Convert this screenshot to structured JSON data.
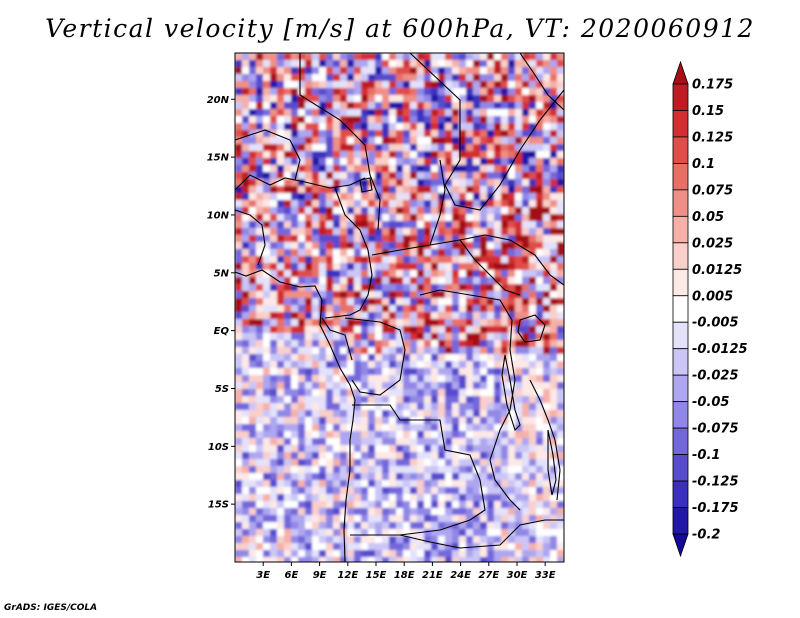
{
  "title": "Vertical velocity [m/s] at 600hPa, VT: 2020060912",
  "credit": "GrADS: IGES/COLA",
  "lat_ticks": [
    "20N",
    "15N",
    "10N",
    "5N",
    "EQ",
    "5S",
    "10S",
    "15S"
  ],
  "lon_ticks": [
    "3E",
    "6E",
    "9E",
    "12E",
    "15E",
    "18E",
    "21E",
    "24E",
    "27E",
    "30E",
    "33E"
  ],
  "colorbar": {
    "labels": [
      "0.175",
      "0.15",
      "0.125",
      "0.1",
      "0.075",
      "0.05",
      "0.025",
      "0.0125",
      "0.005",
      "-0.005",
      "-0.0125",
      "-0.025",
      "-0.05",
      "-0.075",
      "-0.1",
      "-0.125",
      "-0.175",
      "-0.2"
    ],
    "colors": [
      "#a50f15",
      "#c01b24",
      "#d32f31",
      "#e04e4a",
      "#e86f66",
      "#ef8f86",
      "#f5b0a8",
      "#f9cfca",
      "#fde9e6",
      "#ffffff",
      "#e4e2fb",
      "#cbc6f6",
      "#aea6ef",
      "#9087e6",
      "#7368db",
      "#564ccd",
      "#3a30bd",
      "#2317a8",
      "#15099a"
    ]
  },
  "chart_data": {
    "type": "heatmap",
    "variable": "Vertical velocity",
    "units": "m/s",
    "level": "600hPa",
    "valid_time": "2020060912",
    "lon_range": [
      0,
      35
    ],
    "lat_range": [
      -20,
      24
    ],
    "lon_ticks": [
      3,
      6,
      9,
      12,
      15,
      18,
      21,
      24,
      27,
      30,
      33
    ],
    "lat_ticks": [
      20,
      15,
      10,
      5,
      0,
      -5,
      -10,
      -15
    ],
    "levels": [
      -0.2,
      -0.175,
      -0.125,
      -0.1,
      -0.075,
      -0.05,
      -0.025,
      -0.0125,
      -0.005,
      0.005,
      0.0125,
      0.025,
      0.05,
      0.075,
      0.1,
      0.125,
      0.15,
      0.175
    ]
  }
}
